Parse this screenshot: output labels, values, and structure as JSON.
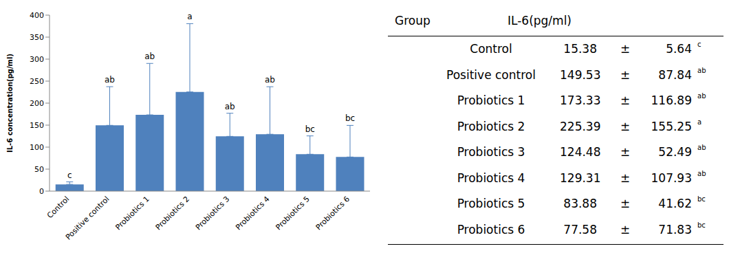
{
  "chart_data": {
    "type": "bar",
    "y_label": "IL-6 concentration(pg/ml)",
    "categories": [
      "Control",
      "Positive control",
      "Probiotics 1",
      "Probiotics 2",
      "Probiotics 3",
      "Probiotics 4",
      "Probiotics 5",
      "Probiotics 6"
    ],
    "values": [
      15.38,
      149.53,
      173.33,
      225.39,
      124.48,
      129.31,
      83.88,
      77.58
    ],
    "error": [
      5.64,
      87.84,
      116.89,
      155.25,
      52.49,
      107.93,
      41.62,
      71.83
    ],
    "letters": [
      "c",
      "ab",
      "ab",
      "a",
      "ab",
      "ab",
      "bc",
      "bc"
    ],
    "color": "#4f81bd",
    "ylim": [
      0,
      400
    ],
    "yticks": [
      0,
      50,
      100,
      150,
      200,
      250,
      300,
      350,
      400
    ],
    "grid": false
  },
  "table": {
    "columns": [
      "Group",
      "IL-6(pg/ml)"
    ],
    "separator": "±"
  }
}
